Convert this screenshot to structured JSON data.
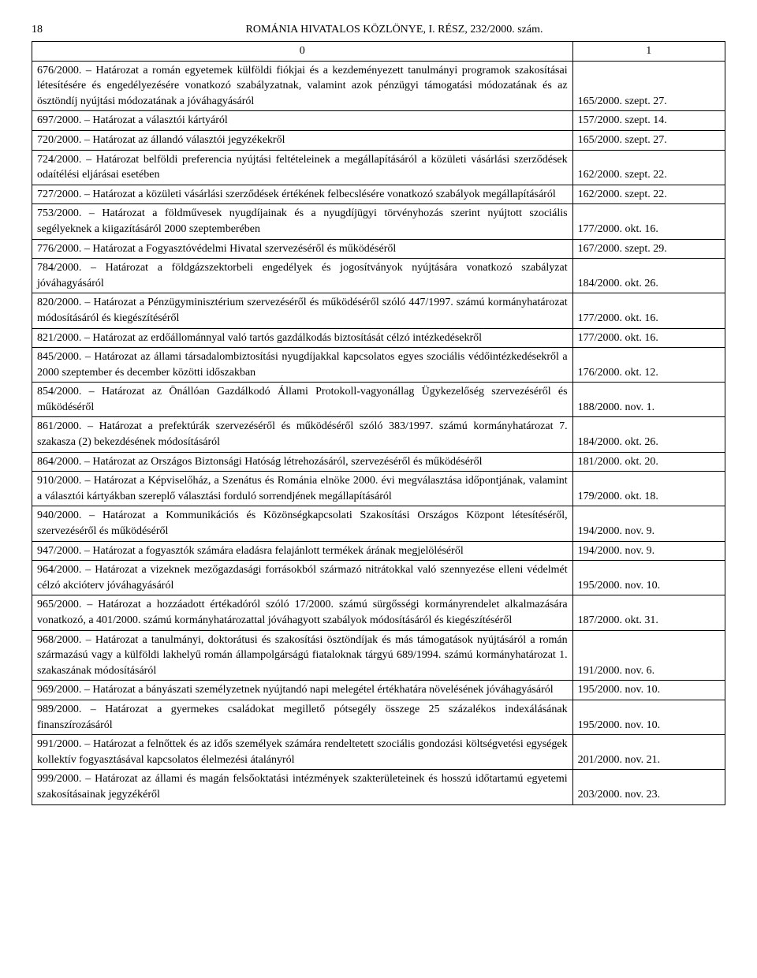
{
  "page_number": "18",
  "header_title": "ROMÁNIA HIVATALOS KÖZLÖNYE, I. RÉSZ, 232/2000. szám.",
  "col_headers": [
    "0",
    "1"
  ],
  "rows": [
    {
      "c0": "676/2000. – Határozat a román egyetemek külföldi fiókjai és a kezdeményezett tanulmányi programok szakosításai létesítésére és engedélyezésére vonatkozó szabályzatnak, valamint azok pénzügyi támogatási módozatának és az ösztöndíj nyújtási módozatának a jóváhagyásáról",
      "c1": "165/2000. szept. 27."
    },
    {
      "c0": "697/2000. – Határozat a választói kártyáról",
      "c1": "157/2000. szept. 14."
    },
    {
      "c0": "720/2000. – Határozat az állandó választói jegyzékekről",
      "c1": "165/2000. szept. 27."
    },
    {
      "c0": "724/2000. – Határozat belföldi preferencia nyújtási feltételeinek a megállapításáról a közületi vásárlási szerződések odaítélési eljárásai esetében",
      "c1": "162/2000. szept. 22."
    },
    {
      "c0": "727/2000. – Határozat a közületi vásárlási szerződések értékének felbecslésére vonatkozó szabályok megállapításáról",
      "c1": "162/2000. szept. 22."
    },
    {
      "c0": "753/2000. – Határozat a földművesek nyugdíjainak és a nyugdíjügyi törvényhozás szerint nyújtott szociális segélyeknek a kiigazításáról 2000 szeptemberében",
      "c1": "177/2000. okt. 16."
    },
    {
      "c0": "776/2000. – Határozat a Fogyasztóvédelmi Hivatal szervezéséről és működéséről",
      "c1": "167/2000. szept. 29."
    },
    {
      "c0": "784/2000. – Határozat a földgázszektorbeli engedélyek és jogosítványok nyújtására vonatkozó szabályzat jóváhagyásáról",
      "c1": "184/2000. okt. 26."
    },
    {
      "c0": "820/2000. – Határozat a Pénzügyminisztérium szervezéséről és működéséről szóló 447/1997. számú kormányhatározat módosításáról és kiegészítéséről",
      "c1": "177/2000. okt. 16."
    },
    {
      "c0": "821/2000. – Határozat az erdőállománnyal való tartós gazdálkodás biztosítását célzó intézkedésekről",
      "c1": "177/2000. okt. 16."
    },
    {
      "c0": "845/2000. – Határozat az állami társadalombiztosítási nyugdíjakkal kapcsolatos egyes szociális védőintézkedésekről a 2000 szeptember és december közötti időszakban",
      "c1": "176/2000. okt. 12."
    },
    {
      "c0": "854/2000. – Határozat az Önállóan Gazdálkodó Állami Protokoll-vagyonállag Ügykezelőség szervezéséről és működéséről",
      "c1": "188/2000. nov. 1."
    },
    {
      "c0": "861/2000. – Határozat a prefektúrák szervezéséről és működéséről szóló 383/1997. számú kormányhatározat 7. szakasza (2) bekezdésének módosításáról",
      "c1": "184/2000. okt. 26."
    },
    {
      "c0": "864/2000. – Határozat az Országos Biztonsági Hatóság létrehozásáról, szervezéséről és működéséről",
      "c1": "181/2000. okt. 20."
    },
    {
      "c0": "910/2000. – Határozat a Képviselőház, a Szenátus és Románia elnöke 2000. évi megválasztása időpontjának, valamint a választói kártyákban szereplő választási forduló sorrendjének megállapításáról",
      "c1": "179/2000. okt. 18."
    },
    {
      "c0": "940/2000. – Határozat a Kommunikációs és Közönségkapcsolati Szakosítási Országos Központ létesítéséről, szervezéséről és működéséről",
      "c1": "194/2000. nov. 9."
    },
    {
      "c0": "947/2000. – Határozat a fogyasztók számára eladásra felajánlott termékek árának megjelöléséről",
      "c1": "194/2000. nov. 9."
    },
    {
      "c0": "964/2000. – Határozat a vizeknek mezőgazdasági forrásokból származó nitrátokkal való szennyezése elleni védelmét célzó akcióterv jóváhagyásáról",
      "c1": "195/2000. nov. 10."
    },
    {
      "c0": "965/2000. – Határozat a hozzáadott értékadóról szóló 17/2000. számú sürgősségi kormányrendelet alkalmazására vonatkozó, a 401/2000. számú kormányhatározattal jóváhagyott szabályok módosításáról és kiegészítéséről",
      "c1": "187/2000. okt. 31."
    },
    {
      "c0": "968/2000. – Határozat a tanulmányi, doktorátusi és szakosítási ösztöndíjak és más támogatások nyújtásáról a román származású vagy a külföldi lakhelyű román állampolgárságú fiataloknak tárgyú 689/1994. számú kormányhatározat 1. szakaszának módosításáról",
      "c1": "191/2000. nov. 6."
    },
    {
      "c0": "969/2000. – Határozat a bányászati személyzetnek nyújtandó napi melegétel értékhatára növelésének jóváhagyásáról",
      "c1": "195/2000. nov. 10."
    },
    {
      "c0": "989/2000. – Határozat a gyermekes családokat megillető pótsegély összege 25 százalékos indexálásának finanszírozásáról",
      "c1": "195/2000. nov. 10."
    },
    {
      "c0": "991/2000. – Határozat a felnőttek és az idős személyek számára rendeltetett szociális gondozási költségvetési egységek kollektív fogyasztásával kapcsolatos élelmezési átalányról",
      "c1": "201/2000. nov. 21."
    },
    {
      "c0": "999/2000. – Határozat az állami és magán felsőoktatási intézmények szakterületeinek és hosszú időtartamú egyetemi szakosításainak jegyzékéről",
      "c1": "203/2000. nov. 23."
    }
  ]
}
